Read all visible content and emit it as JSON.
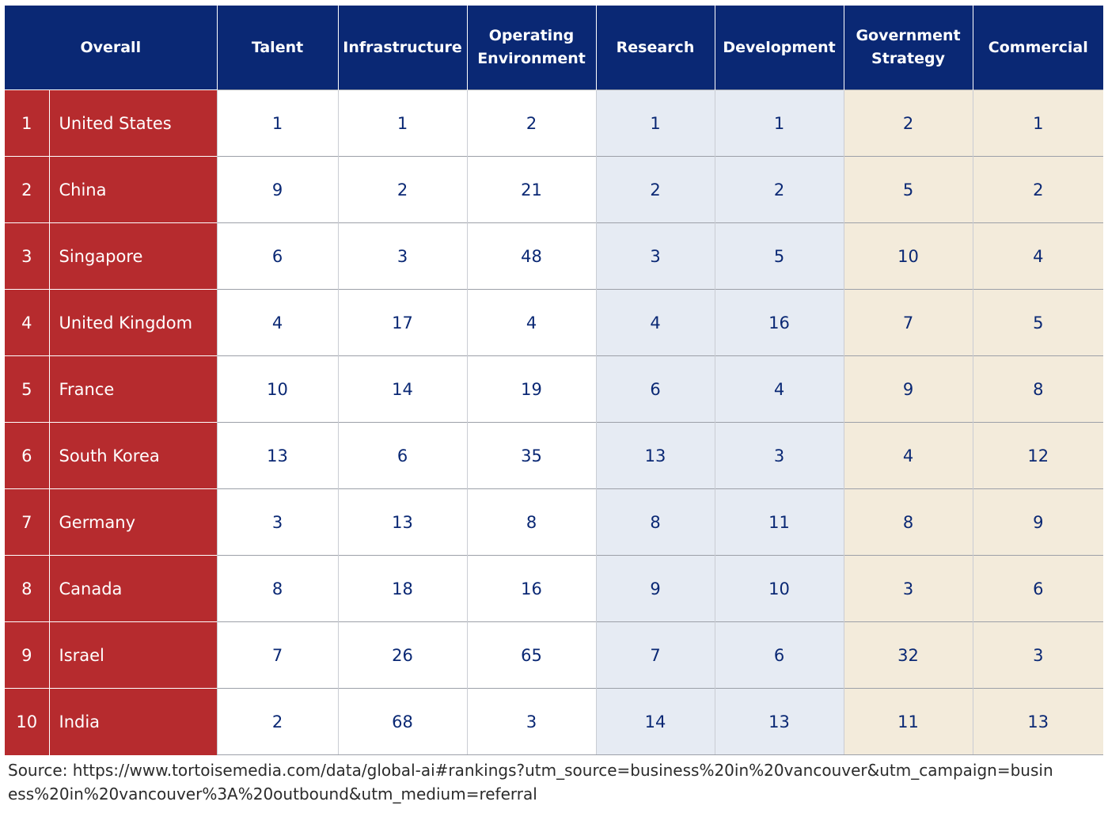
{
  "chart_data": {
    "type": "table",
    "columns": [
      "Overall",
      "Talent",
      "Infrastructure",
      "Operating Environment",
      "Research",
      "Development",
      "Government Strategy",
      "Commercial"
    ],
    "column_groups": {
      "white": [
        "Talent",
        "Infrastructure",
        "Operating Environment"
      ],
      "blue": [
        "Research",
        "Development"
      ],
      "beige": [
        "Government Strategy",
        "Commercial"
      ]
    },
    "rows": [
      {
        "rank": "1",
        "country": "United States",
        "values": [
          "1",
          "1",
          "2",
          "1",
          "1",
          "2",
          "1"
        ]
      },
      {
        "rank": "2",
        "country": "China",
        "values": [
          "9",
          "2",
          "21",
          "2",
          "2",
          "5",
          "2"
        ]
      },
      {
        "rank": "3",
        "country": "Singapore",
        "values": [
          "6",
          "3",
          "48",
          "3",
          "5",
          "10",
          "4"
        ]
      },
      {
        "rank": "4",
        "country": "United Kingdom",
        "values": [
          "4",
          "17",
          "4",
          "4",
          "16",
          "7",
          "5"
        ]
      },
      {
        "rank": "5",
        "country": "France",
        "values": [
          "10",
          "14",
          "19",
          "6",
          "4",
          "9",
          "8"
        ]
      },
      {
        "rank": "6",
        "country": "South Korea",
        "values": [
          "13",
          "6",
          "35",
          "13",
          "3",
          "4",
          "12"
        ]
      },
      {
        "rank": "7",
        "country": "Germany",
        "values": [
          "3",
          "13",
          "8",
          "8",
          "11",
          "8",
          "9"
        ]
      },
      {
        "rank": "8",
        "country": "Canada",
        "values": [
          "8",
          "18",
          "16",
          "9",
          "10",
          "3",
          "6"
        ]
      },
      {
        "rank": "9",
        "country": "Israel",
        "values": [
          "7",
          "26",
          "65",
          "7",
          "6",
          "32",
          "3"
        ]
      },
      {
        "rank": "10",
        "country": "India",
        "values": [
          "2",
          "68",
          "3",
          "14",
          "13",
          "11",
          "13"
        ]
      }
    ]
  },
  "source": "Source:  https://www.tortoisemedia.com/data/global-ai#rankings?utm_source=business%20in%20vancouver&utm_campaign=business%20in%20vancouver%3A%20outbound&utm_medium=referral",
  "colors": {
    "header_bg": "#0a2874",
    "rank_bg": "#b62b2e",
    "blue_group_bg": "#e6ebf3",
    "beige_group_bg": "#f3ebdb",
    "value_text": "#0a2874"
  }
}
